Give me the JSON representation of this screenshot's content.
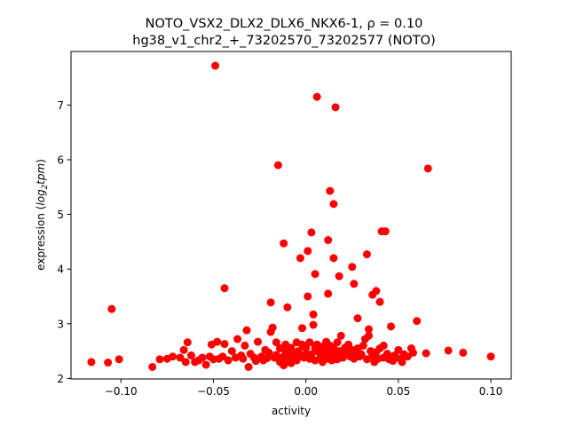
{
  "chart_data": {
    "type": "scatter",
    "title_line1": "NOTO_VSX2_DLX2_DLX6_NKX6-1, ρ = 0.10",
    "title_line2": "hg38_v1_chr2_+_73202570_73202577 (NOTO)",
    "xlabel": "activity",
    "ylabel_prefix": "expression (",
    "ylabel_var": "log",
    "ylabel_sub": "2",
    "ylabel_var2": "tpm",
    "ylabel_suffix": ")",
    "xlim": [
      -0.127,
      0.111
    ],
    "ylim": [
      1.99,
      7.98
    ],
    "x_ticks": [
      -0.1,
      -0.05,
      0.0,
      0.05,
      0.1
    ],
    "x_tick_labels": [
      "−0.10",
      "−0.05",
      "0.00",
      "0.05",
      "0.10"
    ],
    "y_ticks": [
      2,
      3,
      4,
      5,
      6,
      7
    ],
    "y_tick_labels": [
      "2",
      "3",
      "4",
      "5",
      "6",
      "7"
    ],
    "marker_color": "#ff0000",
    "points": [
      [
        -0.116,
        2.3
      ],
      [
        -0.107,
        2.29
      ],
      [
        -0.105,
        3.27
      ],
      [
        -0.101,
        2.35
      ],
      [
        -0.083,
        2.21
      ],
      [
        -0.079,
        2.35
      ],
      [
        -0.075,
        2.36
      ],
      [
        -0.072,
        2.4
      ],
      [
        -0.068,
        2.38
      ],
      [
        -0.066,
        2.52
      ],
      [
        -0.065,
        2.3
      ],
      [
        -0.064,
        2.66
      ],
      [
        -0.062,
        2.42
      ],
      [
        -0.06,
        2.3
      ],
      [
        -0.058,
        2.33
      ],
      [
        -0.056,
        2.38
      ],
      [
        -0.054,
        2.25
      ],
      [
        -0.052,
        2.4
      ],
      [
        -0.051,
        2.62
      ],
      [
        -0.05,
        2.35
      ],
      [
        -0.049,
        7.72
      ],
      [
        -0.048,
        2.67
      ],
      [
        -0.047,
        2.36
      ],
      [
        -0.045,
        2.4
      ],
      [
        -0.044,
        3.65
      ],
      [
        -0.044,
        2.63
      ],
      [
        -0.042,
        2.33
      ],
      [
        -0.04,
        2.5
      ],
      [
        -0.038,
        2.38
      ],
      [
        -0.037,
        2.72
      ],
      [
        -0.035,
        2.42
      ],
      [
        -0.034,
        2.36
      ],
      [
        -0.033,
        2.6
      ],
      [
        -0.032,
        2.88
      ],
      [
        -0.031,
        2.21
      ],
      [
        -0.03,
        2.45
      ],
      [
        -0.028,
        2.38
      ],
      [
        -0.027,
        2.32
      ],
      [
        -0.026,
        2.67
      ],
      [
        -0.024,
        2.4
      ],
      [
        -0.023,
        2.33
      ],
      [
        -0.022,
        2.52
      ],
      [
        -0.021,
        2.37
      ],
      [
        -0.02,
        2.47
      ],
      [
        -0.019,
        2.85
      ],
      [
        -0.019,
        3.39
      ],
      [
        -0.018,
        2.93
      ],
      [
        -0.017,
        2.38
      ],
      [
        -0.016,
        2.43
      ],
      [
        -0.016,
        2.66
      ],
      [
        -0.015,
        5.9
      ],
      [
        -0.014,
        2.3
      ],
      [
        -0.014,
        2.55
      ],
      [
        -0.013,
        2.38
      ],
      [
        -0.012,
        2.24
      ],
      [
        -0.012,
        4.47
      ],
      [
        -0.011,
        2.48
      ],
      [
        -0.011,
        2.62
      ],
      [
        -0.01,
        3.3
      ],
      [
        -0.01,
        2.34
      ],
      [
        -0.009,
        2.42
      ],
      [
        -0.008,
        2.28
      ],
      [
        -0.008,
        2.56
      ],
      [
        -0.007,
        2.37
      ],
      [
        -0.006,
        2.45
      ],
      [
        -0.005,
        2.66
      ],
      [
        -0.005,
        2.33
      ],
      [
        -0.004,
        2.5
      ],
      [
        -0.003,
        4.2
      ],
      [
        -0.003,
        2.42
      ],
      [
        -0.002,
        2.92
      ],
      [
        -0.002,
        2.62
      ],
      [
        -0.001,
        2.38
      ],
      [
        0.0,
        2.55
      ],
      [
        0.0,
        2.44
      ],
      [
        0.001,
        4.33
      ],
      [
        0.001,
        3.5
      ],
      [
        0.002,
        2.36
      ],
      [
        0.002,
        2.66
      ],
      [
        0.003,
        4.67
      ],
      [
        0.003,
        2.44
      ],
      [
        0.004,
        2.98
      ],
      [
        0.004,
        3.17
      ],
      [
        0.005,
        2.56
      ],
      [
        0.005,
        2.33
      ],
      [
        0.005,
        3.91
      ],
      [
        0.006,
        7.15
      ],
      [
        0.006,
        2.62
      ],
      [
        0.007,
        2.48
      ],
      [
        0.008,
        2.35
      ],
      [
        0.008,
        2.4
      ],
      [
        0.009,
        2.58
      ],
      [
        0.009,
        2.3
      ],
      [
        0.01,
        2.44
      ],
      [
        0.01,
        2.38
      ],
      [
        0.011,
        2.67
      ],
      [
        0.011,
        2.52
      ],
      [
        0.012,
        4.53
      ],
      [
        0.012,
        3.55
      ],
      [
        0.012,
        2.36
      ],
      [
        0.013,
        5.43
      ],
      [
        0.013,
        2.47
      ],
      [
        0.013,
        2.6
      ],
      [
        0.014,
        2.38
      ],
      [
        0.014,
        2.33
      ],
      [
        0.015,
        4.2
      ],
      [
        0.015,
        2.55
      ],
      [
        0.015,
        5.19
      ],
      [
        0.016,
        6.96
      ],
      [
        0.016,
        2.42
      ],
      [
        0.017,
        2.66
      ],
      [
        0.017,
        2.35
      ],
      [
        0.018,
        3.87
      ],
      [
        0.018,
        2.5
      ],
      [
        0.019,
        2.44
      ],
      [
        0.019,
        2.78
      ],
      [
        0.02,
        2.38
      ],
      [
        0.021,
        2.56
      ],
      [
        0.022,
        2.45
      ],
      [
        0.023,
        2.62
      ],
      [
        0.024,
        2.4
      ],
      [
        0.025,
        4.04
      ],
      [
        0.025,
        2.52
      ],
      [
        0.026,
        3.73
      ],
      [
        0.026,
        2.36
      ],
      [
        0.027,
        2.47
      ],
      [
        0.028,
        3.1
      ],
      [
        0.028,
        2.55
      ],
      [
        0.029,
        2.4
      ],
      [
        0.03,
        2.44
      ],
      [
        0.031,
        2.6
      ],
      [
        0.032,
        2.72
      ],
      [
        0.033,
        4.27
      ],
      [
        0.033,
        2.35
      ],
      [
        0.034,
        2.9
      ],
      [
        0.034,
        2.78
      ],
      [
        0.035,
        2.5
      ],
      [
        0.036,
        3.53
      ],
      [
        0.036,
        2.42
      ],
      [
        0.037,
        2.3
      ],
      [
        0.038,
        3.6
      ],
      [
        0.038,
        2.48
      ],
      [
        0.039,
        2.36
      ],
      [
        0.04,
        2.55
      ],
      [
        0.04,
        3.4
      ],
      [
        0.041,
        4.69
      ],
      [
        0.042,
        2.6
      ],
      [
        0.042,
        2.38
      ],
      [
        0.043,
        4.69
      ],
      [
        0.044,
        2.45
      ],
      [
        0.045,
        2.35
      ],
      [
        0.046,
        2.95
      ],
      [
        0.047,
        2.32
      ],
      [
        0.048,
        2.42
      ],
      [
        0.05,
        2.52
      ],
      [
        0.051,
        2.36
      ],
      [
        0.052,
        2.3
      ],
      [
        0.053,
        2.44
      ],
      [
        0.055,
        2.4
      ],
      [
        0.057,
        2.55
      ],
      [
        0.058,
        2.47
      ],
      [
        0.06,
        3.05
      ],
      [
        0.065,
        2.46
      ],
      [
        0.066,
        5.84
      ],
      [
        0.077,
        2.51
      ],
      [
        0.085,
        2.47
      ],
      [
        0.1,
        2.4
      ]
    ]
  }
}
